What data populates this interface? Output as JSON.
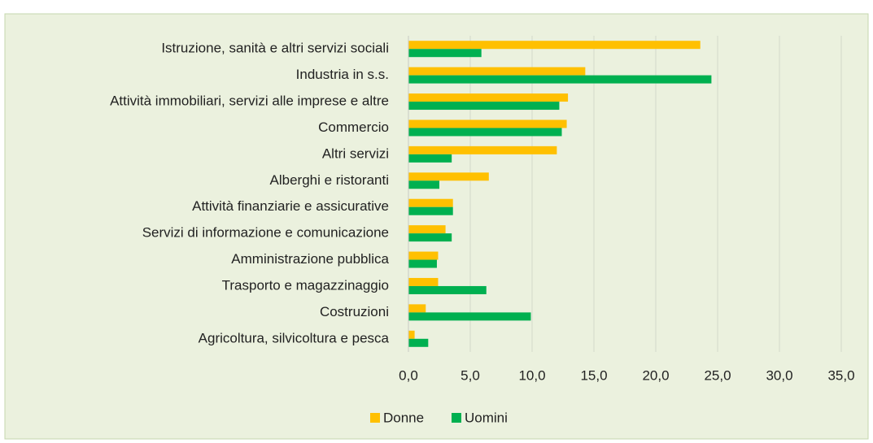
{
  "chart_data": {
    "type": "bar",
    "orientation": "horizontal",
    "categories": [
      "Istruzione, sanità e altri servizi sociali",
      "Industria in s.s.",
      "Attività immobiliari, servizi alle imprese e altre",
      "Commercio",
      "Altri servizi",
      "Alberghi e ristoranti",
      "Attività finanziarie e assicurative",
      "Servizi di informazione e comunicazione",
      "Amministrazione pubblica",
      "Trasporto  e magazzinaggio",
      "Costruzioni",
      "Agricoltura, silvicoltura e pesca"
    ],
    "series": [
      {
        "name": "Donne",
        "color": "#ffc000",
        "values": [
          23.6,
          14.3,
          12.9,
          12.8,
          12.0,
          6.5,
          3.6,
          3.0,
          2.4,
          2.4,
          1.4,
          0.5
        ]
      },
      {
        "name": "Uomini",
        "color": "#00b050",
        "values": [
          5.9,
          24.5,
          12.2,
          12.4,
          3.5,
          2.5,
          3.6,
          3.5,
          2.3,
          6.3,
          9.9,
          1.6
        ]
      }
    ],
    "xlim": [
      0,
      35
    ],
    "xticks": [
      {
        "value": 0,
        "label": "0,0"
      },
      {
        "value": 5,
        "label": "5,0"
      },
      {
        "value": 10,
        "label": "10,0"
      },
      {
        "value": 15,
        "label": "15,0"
      },
      {
        "value": 20,
        "label": "20,0"
      },
      {
        "value": 25,
        "label": "25,0"
      },
      {
        "value": 30,
        "label": "30,0"
      },
      {
        "value": 35,
        "label": "35,0"
      }
    ],
    "grid": true,
    "legend": "bottom"
  }
}
